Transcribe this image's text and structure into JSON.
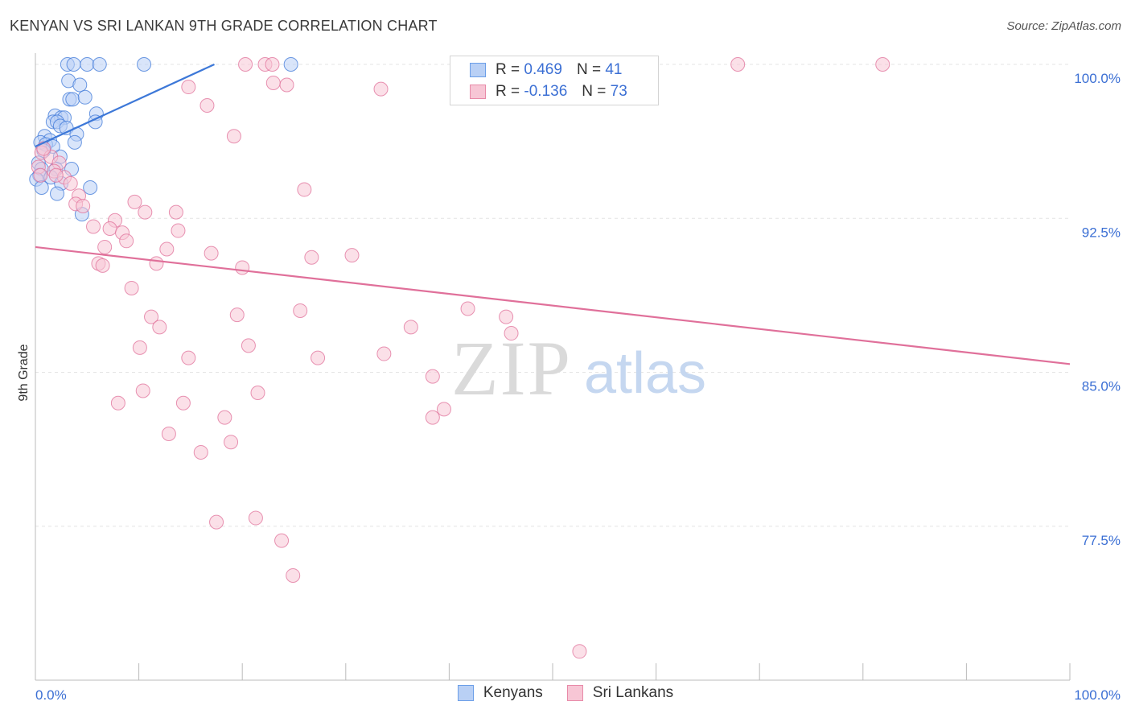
{
  "title": "KENYAN VS SRI LANKAN 9TH GRADE CORRELATION CHART",
  "source": "Source: ZipAtlas.com",
  "watermark": {
    "zip": "ZIP",
    "atlas": "atlas"
  },
  "legend": {
    "rows": [
      {
        "r_label": "R =",
        "r_value": "0.469",
        "n_label": "N =",
        "n_value": "41",
        "color": "#6b9ee8",
        "fill": "#b9d0f5"
      },
      {
        "r_label": "R =",
        "r_value": "-0.136",
        "n_label": "N =",
        "n_value": "73",
        "color": "#e88aa8",
        "fill": "#f7c6d5"
      }
    ]
  },
  "bottom_legend": [
    {
      "label": "Kenyans",
      "color": "#6b9ee8",
      "fill": "#b9d0f5"
    },
    {
      "label": "Sri Lankans",
      "color": "#e88aa8",
      "fill": "#f7c6d5"
    }
  ],
  "chart_data": {
    "type": "scatter",
    "title": "KENYAN VS SRI LANKAN 9TH GRADE CORRELATION CHART",
    "xlabel": "",
    "ylabel": "9th Grade",
    "xlim": [
      0,
      100
    ],
    "ylim": [
      70.5,
      101.0
    ],
    "x_tick_labels": [
      {
        "value": 0,
        "label": "0.0%"
      },
      {
        "value": 100,
        "label": "100.0%"
      }
    ],
    "y_ticks": [
      {
        "value": 100.0,
        "label": "100.0%"
      },
      {
        "value": 92.5,
        "label": "92.5%"
      },
      {
        "value": 85.0,
        "label": "85.0%"
      },
      {
        "value": 77.5,
        "label": "77.5%"
      }
    ],
    "grid": true,
    "series": [
      {
        "name": "Kenyans",
        "color": "#3d78d8",
        "fill": "#b9d0f5",
        "trend": {
          "x": [
            0.0,
            17.3
          ],
          "y": [
            96.0,
            100.0
          ]
        },
        "points": [
          [
            3.1,
            100.0
          ],
          [
            3.7,
            100.0
          ],
          [
            5.0,
            100.0
          ],
          [
            6.2,
            100.0
          ],
          [
            10.5,
            100.0
          ],
          [
            24.7,
            100.0
          ],
          [
            3.2,
            99.2
          ],
          [
            4.3,
            99.0
          ],
          [
            3.3,
            98.3
          ],
          [
            3.6,
            98.3
          ],
          [
            4.8,
            98.4
          ],
          [
            5.9,
            97.6
          ],
          [
            1.9,
            97.5
          ],
          [
            2.5,
            97.4
          ],
          [
            2.8,
            97.4
          ],
          [
            1.7,
            97.2
          ],
          [
            2.1,
            97.2
          ],
          [
            5.8,
            97.2
          ],
          [
            2.4,
            97.0
          ],
          [
            3.0,
            96.9
          ],
          [
            4.0,
            96.6
          ],
          [
            0.9,
            96.5
          ],
          [
            1.4,
            96.3
          ],
          [
            0.5,
            96.2
          ],
          [
            1.0,
            96.1
          ],
          [
            3.8,
            96.2
          ],
          [
            1.7,
            96.0
          ],
          [
            0.8,
            95.8
          ],
          [
            0.3,
            95.2
          ],
          [
            2.4,
            95.5
          ],
          [
            0.6,
            94.9
          ],
          [
            2.0,
            94.9
          ],
          [
            3.5,
            94.9
          ],
          [
            0.4,
            94.6
          ],
          [
            1.5,
            94.5
          ],
          [
            0.1,
            94.4
          ],
          [
            0.6,
            94.0
          ],
          [
            2.5,
            94.2
          ],
          [
            5.3,
            94.0
          ],
          [
            2.1,
            93.7
          ],
          [
            4.5,
            92.7
          ]
        ]
      },
      {
        "name": "Sri Lankans",
        "color": "#e0709a",
        "fill": "#f7c6d5",
        "trend": {
          "x": [
            0.0,
            100.0
          ],
          "y": [
            91.1,
            85.4
          ]
        },
        "points": [
          [
            20.3,
            100.0
          ],
          [
            22.2,
            100.0
          ],
          [
            22.9,
            100.0
          ],
          [
            67.9,
            100.0
          ],
          [
            81.9,
            100.0
          ],
          [
            23.0,
            99.1
          ],
          [
            24.3,
            99.0
          ],
          [
            14.8,
            98.9
          ],
          [
            33.4,
            98.8
          ],
          [
            16.6,
            98.0
          ],
          [
            19.2,
            96.5
          ],
          [
            0.6,
            95.7
          ],
          [
            1.5,
            95.5
          ],
          [
            2.3,
            95.2
          ],
          [
            0.3,
            95.0
          ],
          [
            1.8,
            94.8
          ],
          [
            0.5,
            94.6
          ],
          [
            2.8,
            94.5
          ],
          [
            2.0,
            94.6
          ],
          [
            3.4,
            94.2
          ],
          [
            26.0,
            93.9
          ],
          [
            4.2,
            93.6
          ],
          [
            9.6,
            93.3
          ],
          [
            3.9,
            93.2
          ],
          [
            4.6,
            93.1
          ],
          [
            10.6,
            92.8
          ],
          [
            13.6,
            92.8
          ],
          [
            7.7,
            92.4
          ],
          [
            5.6,
            92.1
          ],
          [
            7.2,
            92.0
          ],
          [
            13.8,
            91.9
          ],
          [
            8.4,
            91.8
          ],
          [
            8.8,
            91.4
          ],
          [
            6.7,
            91.1
          ],
          [
            12.7,
            91.0
          ],
          [
            17.0,
            90.8
          ],
          [
            26.7,
            90.6
          ],
          [
            30.6,
            90.7
          ],
          [
            6.1,
            90.3
          ],
          [
            11.7,
            90.3
          ],
          [
            6.5,
            90.2
          ],
          [
            20.0,
            90.1
          ],
          [
            9.3,
            89.1
          ],
          [
            41.8,
            88.1
          ],
          [
            25.6,
            88.0
          ],
          [
            19.5,
            87.8
          ],
          [
            11.2,
            87.7
          ],
          [
            45.5,
            87.7
          ],
          [
            12.0,
            87.2
          ],
          [
            36.3,
            87.2
          ],
          [
            46.0,
            86.9
          ],
          [
            10.1,
            86.2
          ],
          [
            20.6,
            86.3
          ],
          [
            33.7,
            85.9
          ],
          [
            14.8,
            85.7
          ],
          [
            27.3,
            85.7
          ],
          [
            38.4,
            84.8
          ],
          [
            10.4,
            84.1
          ],
          [
            21.5,
            84.0
          ],
          [
            8.0,
            83.5
          ],
          [
            14.3,
            83.5
          ],
          [
            39.5,
            83.2
          ],
          [
            18.3,
            82.8
          ],
          [
            38.4,
            82.8
          ],
          [
            12.9,
            82.0
          ],
          [
            18.9,
            81.6
          ],
          [
            16.0,
            81.1
          ],
          [
            21.3,
            77.9
          ],
          [
            17.5,
            77.7
          ],
          [
            23.8,
            76.8
          ],
          [
            24.9,
            75.1
          ],
          [
            52.6,
            71.4
          ],
          [
            0.8,
            95.9
          ]
        ]
      }
    ]
  }
}
